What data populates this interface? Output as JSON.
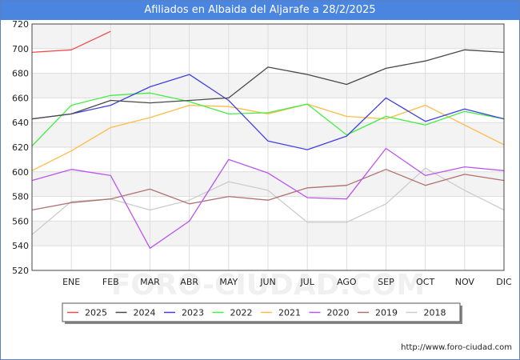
{
  "header": {
    "title": "Afiliados en Albaida del Aljarafe a 28/2/2025"
  },
  "footer": {
    "url": "http://www.foro-ciudad.com"
  },
  "watermark": "FORO-CIUDAD.COM",
  "chart_data": {
    "type": "line",
    "title": "Afiliados en Albaida del Aljarafe a 28/2/2025",
    "xlabel": "",
    "ylabel": "",
    "categories": [
      "ENE",
      "FEB",
      "MAR",
      "ABR",
      "MAY",
      "JUN",
      "JUL",
      "AGO",
      "SEP",
      "OCT",
      "NOV",
      "DIC"
    ],
    "ylim": [
      520,
      720
    ],
    "yticks": [
      520,
      540,
      560,
      580,
      600,
      620,
      640,
      660,
      680,
      700,
      720
    ],
    "grid": true,
    "legend_position": "bottom",
    "series": [
      {
        "name": "2025",
        "color": "#f04c4c",
        "x": [
          0,
          1,
          2
        ],
        "values": [
          697,
          699,
          714
        ]
      },
      {
        "name": "2024",
        "color": "#484848",
        "x": [
          0,
          1,
          2,
          3,
          4,
          5,
          6,
          7,
          8,
          9,
          10,
          11,
          12
        ],
        "values": [
          643,
          647,
          658,
          656,
          658,
          660,
          685,
          679,
          671,
          684,
          690,
          699,
          697
        ]
      },
      {
        "name": "2023",
        "color": "#4040e0",
        "x": [
          0,
          1,
          2,
          3,
          4,
          5,
          6,
          7,
          8,
          9,
          10,
          11,
          12
        ],
        "values": [
          643,
          647,
          654,
          669,
          679,
          658,
          625,
          618,
          629,
          660,
          641,
          651,
          643
        ]
      },
      {
        "name": "2022",
        "color": "#44ee44",
        "x": [
          0,
          1,
          2,
          3,
          4,
          5,
          6,
          7,
          8,
          9,
          10,
          11,
          12
        ],
        "values": [
          621,
          654,
          662,
          664,
          657,
          647,
          648,
          655,
          630,
          645,
          638,
          649,
          643
        ]
      },
      {
        "name": "2021",
        "color": "#ffbb44",
        "x": [
          0,
          1,
          2,
          3,
          4,
          5,
          6,
          7,
          8,
          9,
          10,
          11,
          12
        ],
        "values": [
          601,
          617,
          636,
          644,
          654,
          653,
          647,
          655,
          645,
          643,
          654,
          638,
          622
        ]
      },
      {
        "name": "2020",
        "color": "#bb55ee",
        "x": [
          0,
          1,
          2,
          3,
          4,
          5,
          6,
          7,
          8,
          9,
          10,
          11,
          12
        ],
        "values": [
          593,
          602,
          597,
          538,
          560,
          610,
          599,
          579,
          578,
          619,
          597,
          604,
          601
        ]
      },
      {
        "name": "2019",
        "color": "#b07070",
        "x": [
          0,
          1,
          2,
          3,
          4,
          5,
          6,
          7,
          8,
          9,
          10,
          11,
          12
        ],
        "values": [
          569,
          575,
          578,
          586,
          574,
          580,
          577,
          587,
          589,
          602,
          589,
          598,
          593
        ]
      },
      {
        "name": "2018",
        "color": "#cccccc",
        "x": [
          0,
          1,
          2,
          3,
          4,
          5,
          6,
          7,
          8,
          9,
          10,
          11,
          12
        ],
        "values": [
          549,
          576,
          578,
          569,
          577,
          592,
          585,
          559,
          559,
          574,
          603,
          585,
          569
        ]
      }
    ]
  }
}
